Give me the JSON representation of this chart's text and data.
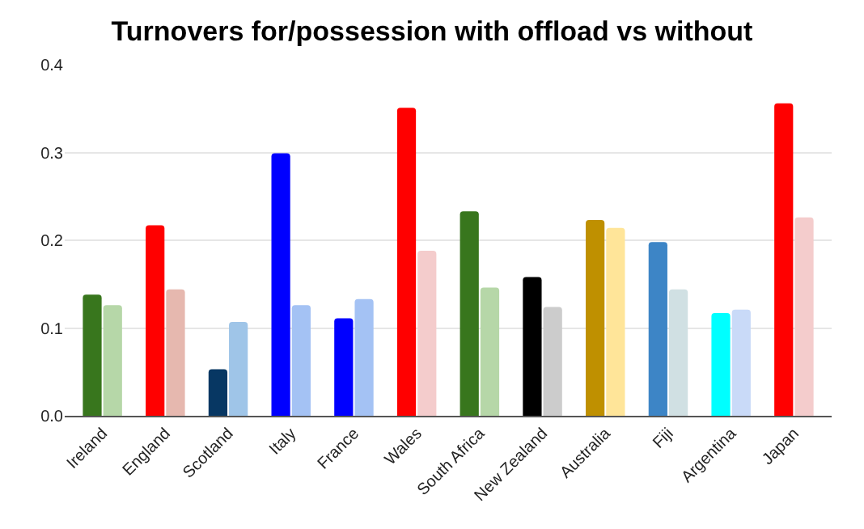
{
  "chart_data": {
    "type": "bar",
    "title": "Turnovers for/possession with offload vs without",
    "categories": [
      "Ireland",
      "England",
      "Scotland",
      "Italy",
      "France",
      "Wales",
      "South Africa",
      "New Zealand",
      "Australia",
      "Fiji",
      "Argentina",
      "Japan"
    ],
    "series": [
      {
        "colors": [
          "#38761d",
          "#ff0000",
          "#073763",
          "#0000ff",
          "#0000ff",
          "#ff0000",
          "#38761d",
          "#000000",
          "#bf9000",
          "#3d85c6",
          "#00ffff",
          "#ff0000"
        ],
        "values": [
          0.138,
          0.217,
          0.053,
          0.299,
          0.111,
          0.351,
          0.233,
          0.158,
          0.223,
          0.198,
          0.117,
          0.356
        ]
      },
      {
        "colors": [
          "#b6d7a8",
          "#e6b8af",
          "#9fc5e8",
          "#a4c2f4",
          "#a4c2f4",
          "#f4cccc",
          "#b6d7a8",
          "#cccccc",
          "#ffe599",
          "#d0e0e3",
          "#c9daf8",
          "#f4cccc"
        ],
        "values": [
          0.126,
          0.144,
          0.107,
          0.126,
          0.133,
          0.188,
          0.146,
          0.124,
          0.214,
          0.144,
          0.121,
          0.226
        ]
      }
    ],
    "ylim": [
      0,
      0.4
    ],
    "yticks": [
      "0.0",
      0.1,
      0.2,
      0.3,
      0.4
    ],
    "grid": "y"
  }
}
